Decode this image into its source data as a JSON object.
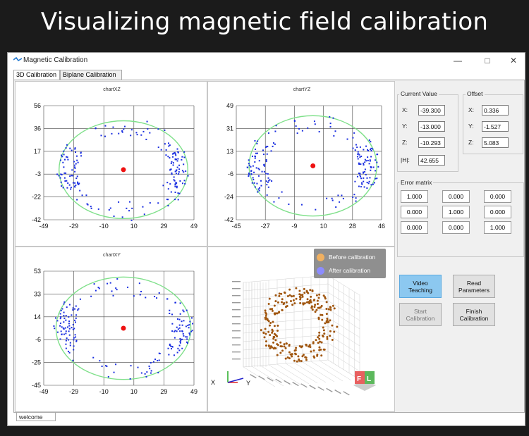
{
  "banner_title": "Visualizing magnetic field calibration",
  "window": {
    "title": "Magnetic Calibration",
    "tabs": [
      "3D Calibration",
      "Biplane Calibration"
    ],
    "status": "welcome"
  },
  "current_value": {
    "title": "Current Value",
    "x_label": "X:",
    "x": "-39.300",
    "y_label": "Y:",
    "y": "-13.000",
    "z_label": "Z:",
    "z": "-10.293",
    "h_label": "|H|:",
    "h": "42.655"
  },
  "offset": {
    "title": "Offset",
    "x_label": "X:",
    "x": "0.336",
    "y_label": "Y:",
    "y": "-1.527",
    "z_label": "Z:",
    "z": "5.083"
  },
  "error_matrix": {
    "title": "Error matrix",
    "rows": [
      [
        "1.000",
        "0.000",
        "0.000"
      ],
      [
        "0.000",
        "1.000",
        "0.000"
      ],
      [
        "0.000",
        "0.000",
        "1.000"
      ]
    ]
  },
  "buttons": {
    "video_teaching": "Video Teaching",
    "read_parameters": "Read Parameters",
    "start_calibration": "Start Calibration",
    "finish_calibration": "Finish Calibration"
  },
  "legend": {
    "before": "Before calibration",
    "after": "After calibration",
    "before_color": "#f0b060",
    "after_color": "#8c8cff"
  },
  "axis3d": {
    "x": "X",
    "y": "Y"
  },
  "colors": {
    "points": "#1a2ee0",
    "circle": "#7fe08a",
    "center": "#ee1111",
    "points3d": "#a0560f"
  },
  "chart_data": [
    {
      "type": "scatter",
      "title": "chartXZ",
      "xticks": [
        "-49",
        "-29",
        "-10",
        "10",
        "29",
        "49"
      ],
      "yticks": [
        "56",
        "36",
        "17",
        "-3",
        "-22",
        "-42"
      ],
      "xlim": [
        -49,
        49
      ],
      "ylim": [
        -42,
        56
      ],
      "center": [
        3,
        1
      ],
      "circle_radius": 42
    },
    {
      "type": "scatter",
      "title": "chartYZ",
      "xticks": [
        "-45",
        "-27",
        "-9",
        "10",
        "28",
        "46"
      ],
      "yticks": [
        "49",
        "31",
        "13",
        "-6",
        "-24",
        "-42"
      ],
      "xlim": [
        -45,
        46
      ],
      "ylim": [
        -42,
        49
      ],
      "center": [
        3,
        1
      ],
      "circle_radius": 40
    },
    {
      "type": "scatter",
      "title": "chartXY",
      "xticks": [
        "-49",
        "-29",
        "-10",
        "10",
        "29",
        "49"
      ],
      "yticks": [
        "53",
        "33",
        "14",
        "-6",
        "-25",
        "-45"
      ],
      "xlim": [
        -49,
        49
      ],
      "ylim": [
        -45,
        53
      ],
      "center": [
        3,
        4
      ],
      "circle_radius": 44
    }
  ]
}
